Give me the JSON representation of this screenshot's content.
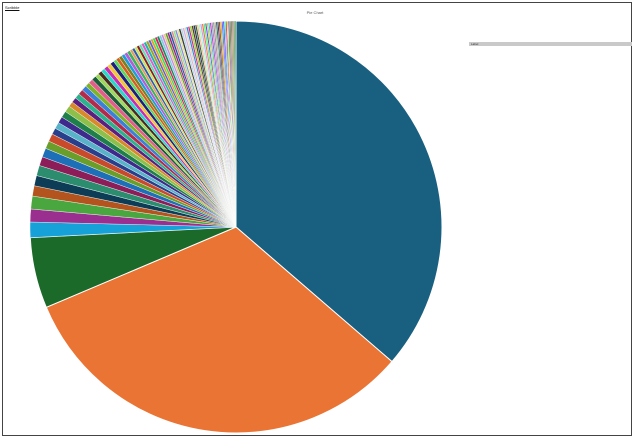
{
  "top_link": "Scribble",
  "legend_header": "Label",
  "chart_data": {
    "type": "pie",
    "title": "Pie Chart",
    "legend_position": "right",
    "slices": [
      {
        "value": 36.0,
        "color": "#195f7f"
      },
      {
        "value": 32.0,
        "color": "#ea7434"
      },
      {
        "value": 5.5,
        "color": "#1b6a2a"
      },
      {
        "value": 1.2,
        "color": "#16a1d8"
      },
      {
        "value": 1.0,
        "color": "#9a2f8f"
      },
      {
        "value": 1.0,
        "color": "#4aa63e"
      },
      {
        "value": 0.8,
        "color": "#b3541e"
      },
      {
        "value": 0.8,
        "color": "#0d3d56"
      },
      {
        "value": 0.8,
        "color": "#2b8c6e"
      },
      {
        "value": 0.7,
        "color": "#8c1d58"
      },
      {
        "value": 0.7,
        "color": "#1d6fb8"
      },
      {
        "value": 0.6,
        "color": "#6a9e2a"
      },
      {
        "value": 0.6,
        "color": "#c94a2a"
      },
      {
        "value": 0.5,
        "color": "#2a3f8c"
      },
      {
        "value": 0.5,
        "color": "#58b3c9"
      },
      {
        "value": 0.5,
        "color": "#3d2a8c"
      },
      {
        "value": 0.5,
        "color": "#1e7f4a"
      },
      {
        "value": 0.5,
        "color": "#8cc04a"
      },
      {
        "value": 0.4,
        "color": "#d88a2a"
      },
      {
        "value": 0.4,
        "color": "#5c1e7f"
      },
      {
        "value": 0.4,
        "color": "#2ab38c"
      },
      {
        "value": 0.4,
        "color": "#b32a4a"
      },
      {
        "value": 0.4,
        "color": "#3a7fd8"
      },
      {
        "value": 0.35,
        "color": "#7fb32a"
      },
      {
        "value": 0.35,
        "color": "#e35c8a"
      },
      {
        "value": 0.35,
        "color": "#1a5c3a"
      },
      {
        "value": 0.3,
        "color": "#9ed85c"
      },
      {
        "value": 0.3,
        "color": "#4a2a1e"
      },
      {
        "value": 0.3,
        "color": "#2ad8c9"
      },
      {
        "value": 0.3,
        "color": "#c92ab3"
      },
      {
        "value": 0.3,
        "color": "#f0c83a"
      },
      {
        "value": 0.3,
        "color": "#1e1e7f"
      },
      {
        "value": 0.25,
        "color": "#5cd85c"
      },
      {
        "value": 0.25,
        "color": "#d85c1e"
      },
      {
        "value": 0.25,
        "color": "#7f7f1e"
      },
      {
        "value": 0.25,
        "color": "#1e9ed8"
      },
      {
        "value": 0.25,
        "color": "#b35cd8"
      },
      {
        "value": 0.25,
        "color": "#3ab35c"
      },
      {
        "value": 0.2,
        "color": "#e39e5c"
      },
      {
        "value": 0.2,
        "color": "#2a5cb3"
      },
      {
        "value": 0.2,
        "color": "#c9e35c"
      },
      {
        "value": 0.2,
        "color": "#8a1e1e"
      },
      {
        "value": 0.2,
        "color": "#5ce3b3"
      },
      {
        "value": 0.2,
        "color": "#e35cc9"
      },
      {
        "value": 0.2,
        "color": "#1eb3b3"
      },
      {
        "value": 0.2,
        "color": "#a3a31e"
      },
      {
        "value": 0.18,
        "color": "#5c5ce3"
      },
      {
        "value": 0.18,
        "color": "#e3a31e"
      },
      {
        "value": 0.18,
        "color": "#2ae35c"
      },
      {
        "value": 0.18,
        "color": "#e31e5c"
      },
      {
        "value": 0.18,
        "color": "#1e8a5c"
      },
      {
        "value": 0.18,
        "color": "#8ac9e3"
      },
      {
        "value": 0.16,
        "color": "#c98ae3"
      },
      {
        "value": 0.16,
        "color": "#e3c98a"
      },
      {
        "value": 0.16,
        "color": "#5ca31e"
      },
      {
        "value": 0.16,
        "color": "#a31e8a"
      },
      {
        "value": 0.16,
        "color": "#1e5ca3"
      },
      {
        "value": 0.16,
        "color": "#e38a8a"
      },
      {
        "value": 0.15,
        "color": "#8ae38a"
      },
      {
        "value": 0.15,
        "color": "#8a8ae3"
      },
      {
        "value": 0.15,
        "color": "#e3e38a"
      },
      {
        "value": 0.15,
        "color": "#3a3a3a"
      },
      {
        "value": 0.15,
        "color": "#b3d8e3"
      },
      {
        "value": 0.15,
        "color": "#d8b3e3"
      },
      {
        "value": 0.14,
        "color": "#e3d8b3"
      },
      {
        "value": 0.14,
        "color": "#2a8ad8"
      },
      {
        "value": 0.14,
        "color": "#d82a8a"
      },
      {
        "value": 0.14,
        "color": "#8ad82a"
      },
      {
        "value": 0.14,
        "color": "#5c3a1e"
      },
      {
        "value": 0.14,
        "color": "#1e3a5c"
      },
      {
        "value": 0.13,
        "color": "#3a5c1e"
      },
      {
        "value": 0.13,
        "color": "#ffb3a3"
      },
      {
        "value": 0.13,
        "color": "#a3ffb3"
      },
      {
        "value": 0.13,
        "color": "#b3a3ff"
      },
      {
        "value": 0.13,
        "color": "#ff6a3a"
      },
      {
        "value": 0.13,
        "color": "#3aff6a"
      },
      {
        "value": 0.12,
        "color": "#6a3aff"
      },
      {
        "value": 0.12,
        "color": "#c9c92a"
      },
      {
        "value": 0.12,
        "color": "#2ac9c9"
      },
      {
        "value": 0.12,
        "color": "#c92ac9"
      },
      {
        "value": 0.12,
        "color": "#7a9ab3"
      },
      {
        "value": 0.12,
        "color": "#b37a9a"
      },
      {
        "value": 0.11,
        "color": "#9ab37a"
      },
      {
        "value": 0.11,
        "color": "#0a5c5c"
      },
      {
        "value": 0.11,
        "color": "#5c0a5c"
      },
      {
        "value": 0.11,
        "color": "#5c5c0a"
      },
      {
        "value": 0.11,
        "color": "#ff8c00"
      },
      {
        "value": 0.11,
        "color": "#008cff"
      },
      {
        "value": 0.1,
        "color": "#8c00ff"
      },
      {
        "value": 0.1,
        "color": "#00ff8c"
      },
      {
        "value": 0.1,
        "color": "#ff008c"
      },
      {
        "value": 0.1,
        "color": "#8cff00"
      },
      {
        "value": 0.1,
        "color": "#444488"
      },
      {
        "value": 0.1,
        "color": "#884444"
      },
      {
        "value": 0.1,
        "color": "#448844"
      },
      {
        "value": 0.1,
        "color": "#aa6622"
      },
      {
        "value": 0.1,
        "color": "#2266aa"
      },
      {
        "value": 0.1,
        "color": "#66aa22"
      }
    ]
  }
}
